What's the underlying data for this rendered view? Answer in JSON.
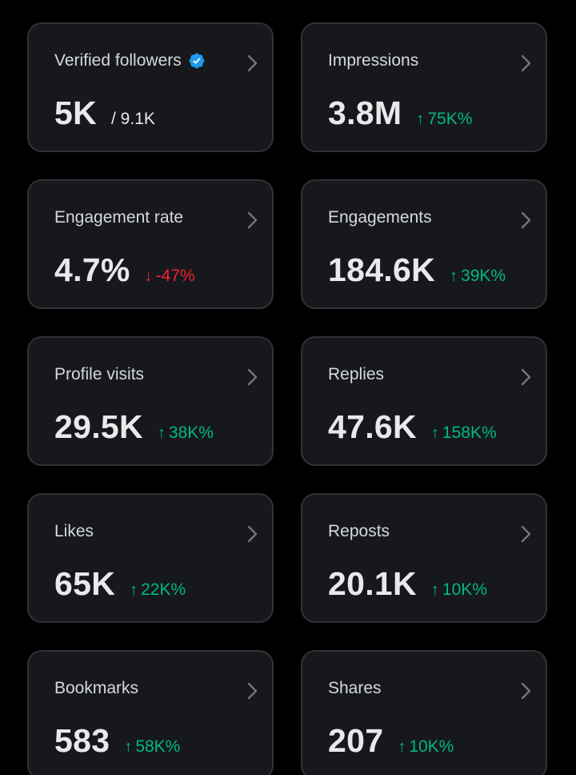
{
  "colors": {
    "background": "#000000",
    "card": "#16181c",
    "card_border": "#2f3336",
    "positive": "#00ba7c",
    "negative": "#f4212e",
    "verified": "#1d9bf0"
  },
  "cards": [
    {
      "label": "Verified followers",
      "value": "5K",
      "secondary": "/ 9.1K",
      "verified_icon": "verified-badge-icon"
    },
    {
      "label": "Impressions",
      "value": "3.8M",
      "delta": "75K%",
      "direction": "up"
    },
    {
      "label": "Engagement rate",
      "value": "4.7%",
      "delta": "-47%",
      "direction": "down"
    },
    {
      "label": "Engagements",
      "value": "184.6K",
      "delta": "39K%",
      "direction": "up"
    },
    {
      "label": "Profile visits",
      "value": "29.5K",
      "delta": "38K%",
      "direction": "up"
    },
    {
      "label": "Replies",
      "value": "47.6K",
      "delta": "158K%",
      "direction": "up"
    },
    {
      "label": "Likes",
      "value": "65K",
      "delta": "22K%",
      "direction": "up"
    },
    {
      "label": "Reposts",
      "value": "20.1K",
      "delta": "10K%",
      "direction": "up"
    },
    {
      "label": "Bookmarks",
      "value": "583",
      "delta": "58K%",
      "direction": "up"
    },
    {
      "label": "Shares",
      "value": "207",
      "delta": "10K%",
      "direction": "up"
    }
  ],
  "icons": {
    "chevron": "chevron-right-icon",
    "up": "arrow-up-icon",
    "down": "arrow-down-icon"
  },
  "arrows": {
    "up": "↑",
    "down": "↓"
  }
}
